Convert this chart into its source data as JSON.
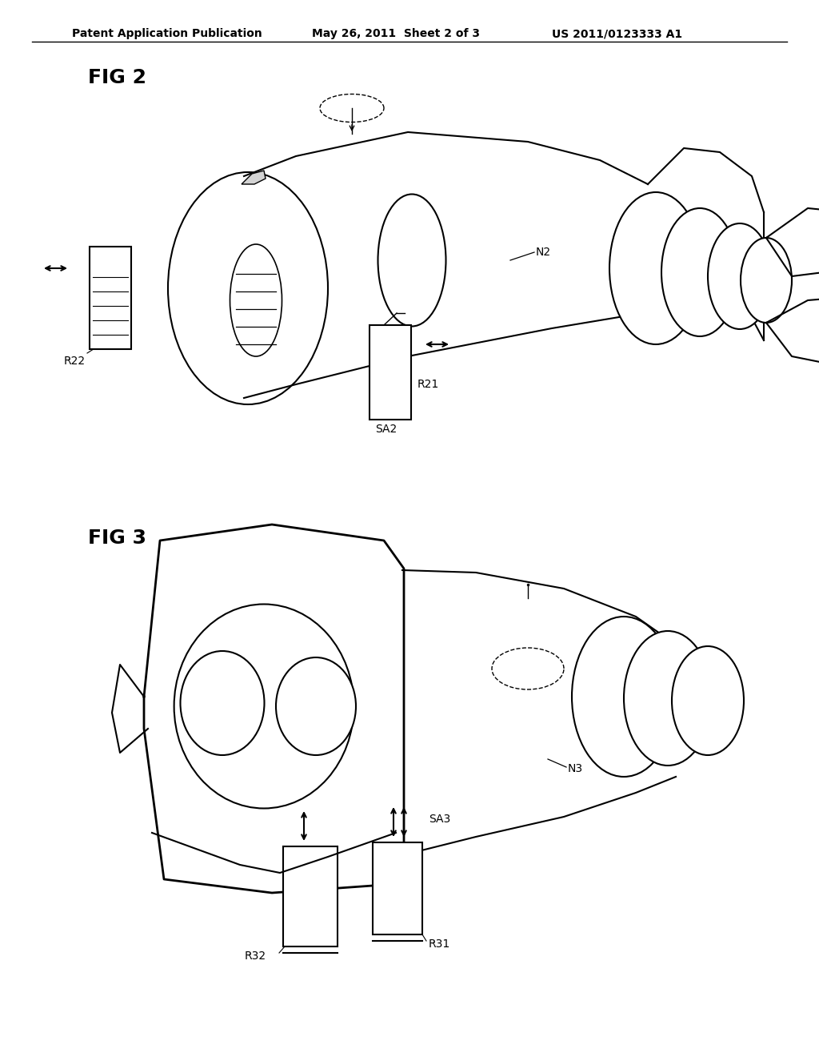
{
  "background_color": "#ffffff",
  "line_color": "#000000",
  "header_left": "Patent Application Publication",
  "header_center": "May 26, 2011  Sheet 2 of 3",
  "header_right": "US 2011/0123333 A1",
  "fig2_label": "FIG 2",
  "fig3_label": "FIG 3",
  "labels_fig2": {
    "N2": "N2",
    "R21": "R21",
    "R22": "R22",
    "SA2": "SA2"
  },
  "labels_fig3": {
    "N3": "N3",
    "R31": "R31",
    "R32": "R32",
    "SA3": "SA3"
  }
}
